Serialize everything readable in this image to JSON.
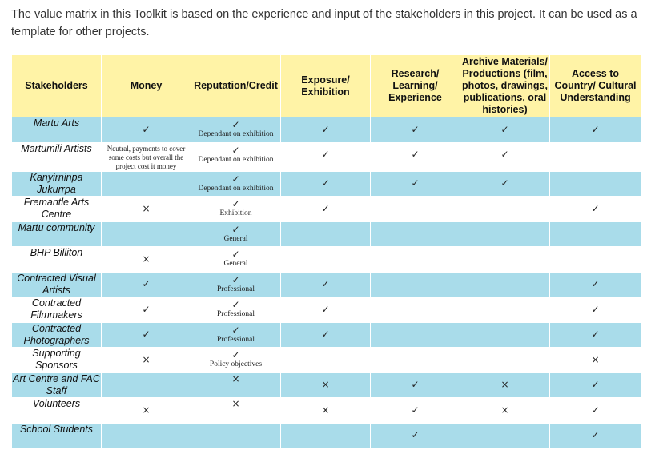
{
  "intro": "The value matrix in this Toolkit is based on the experience and input of the stakeholders in this project. It can be used as a template for other projects.",
  "colors": {
    "header": "#fff3a6",
    "row_shaded": "#a9dcea",
    "row_plain": "#ffffff"
  },
  "headers": {
    "stakeholders": "Stakeholders",
    "money": "Money",
    "reputation": "Reputation/Credit",
    "exposure": "Exposure/ Exhibition",
    "research": "Research/ Learning/ Experience",
    "archive": "Archive Materials/ Productions (film, photos, drawings, publications, oral histories)",
    "access": "Access to Country/ Cultural Understanding"
  },
  "symbols": {
    "check": "✓",
    "cross": "×"
  },
  "rows": [
    {
      "name": "Martu Arts",
      "money": "✓",
      "rep_mark": "✓",
      "rep_note": "Dependant on exhibition",
      "exposure": "✓",
      "research": "✓",
      "archive": "✓",
      "access": "✓"
    },
    {
      "name": "Martumili Artists",
      "money_note": "Neutral, payments to cover some costs but overall the project cost it money",
      "rep_mark": "✓",
      "rep_note": "Dependant on exhibition",
      "exposure": "✓",
      "research": "✓",
      "archive": "✓",
      "access": ""
    },
    {
      "name": "Kanyirninpa Jukurrpa",
      "money": "",
      "rep_mark": "✓",
      "rep_note": "Dependant on exhibition",
      "exposure": "✓",
      "research": "✓",
      "archive": "✓",
      "access": ""
    },
    {
      "name": "Fremantle Arts Centre",
      "money": "×",
      "rep_mark": "✓",
      "rep_note": "Exhibition",
      "exposure": "✓",
      "research": "",
      "archive": "",
      "access": "✓"
    },
    {
      "name": "Martu community",
      "money": "",
      "rep_mark": "✓",
      "rep_note": "General",
      "exposure": "",
      "research": "",
      "archive": "",
      "access": ""
    },
    {
      "name": "BHP Billiton",
      "money": "×",
      "rep_mark": "✓",
      "rep_note": "General",
      "exposure": "",
      "research": "",
      "archive": "",
      "access": ""
    },
    {
      "name": "Contracted Visual Artists",
      "money": "✓",
      "rep_mark": "✓",
      "rep_note": "Professional",
      "exposure": "✓",
      "research": "",
      "archive": "",
      "access": "✓"
    },
    {
      "name": "Contracted Filmmakers",
      "money": "✓",
      "rep_mark": "✓",
      "rep_note": "Professional",
      "exposure": "✓",
      "research": "",
      "archive": "",
      "access": "✓"
    },
    {
      "name": "Contracted Photographers",
      "money": "✓",
      "rep_mark": "✓",
      "rep_note": "Professional",
      "exposure": "✓",
      "research": "",
      "archive": "",
      "access": "✓"
    },
    {
      "name": "Supporting Sponsors",
      "money": "×",
      "rep_mark": "✓",
      "rep_note": "Policy objectives",
      "exposure": "",
      "research": "",
      "archive": "",
      "access": "×"
    },
    {
      "name": "Art Centre and FAC Staff",
      "money": "",
      "rep_mark": "×",
      "rep_note": "",
      "exposure": "×",
      "research": "✓",
      "archive": "×",
      "access": "✓"
    },
    {
      "name": "Volunteers",
      "money": "×",
      "rep_mark": "×",
      "rep_note": "",
      "exposure": "×",
      "research": "✓",
      "archive": "×",
      "access": "✓"
    },
    {
      "name": "School Students",
      "money": "",
      "rep_mark": "",
      "rep_note": "",
      "exposure": "",
      "research": "✓",
      "archive": "",
      "access": "✓"
    }
  ]
}
